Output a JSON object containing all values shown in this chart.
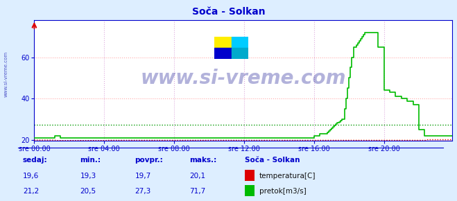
{
  "title": "Soča - Solkan",
  "bg_color": "#ddeeff",
  "plot_bg_color": "#ffffff",
  "text_color": "#0000cc",
  "grid_color_h": "#ffaaaa",
  "grid_color_v": "#ddaadd",
  "ylim": [
    19.5,
    78
  ],
  "xlim": [
    0,
    287
  ],
  "yticks": [
    20,
    40,
    60
  ],
  "xtick_labels": [
    "sre 00:00",
    "sre 04:00",
    "sre 08:00",
    "sre 12:00",
    "sre 16:00",
    "sre 20:00"
  ],
  "xtick_positions": [
    0,
    48,
    96,
    144,
    192,
    240
  ],
  "temp_color": "#dd0000",
  "flow_color": "#00bb00",
  "avg_flow_color": "#009900",
  "watermark_text": "www.si-vreme.com",
  "watermark_color": "#000088",
  "sidebar_text": "www.si-vreme.com",
  "sidebar_color": "#0000aa",
  "avg_flow_line": 27.3,
  "legend_title": "Soča - Solkan",
  "label_temp": "temperatura[C]",
  "label_flow": "pretok[m3/s]",
  "col_sedaj": "sedaj:",
  "col_min": "min.:",
  "col_povpr": "povpr.:",
  "col_maks": "maks.:",
  "temp_sedaj": "19,6",
  "temp_min": "19,3",
  "temp_povpr": "19,7",
  "temp_max": "20,1",
  "flow_sedaj": "21,2",
  "flow_min": "20,5",
  "flow_povpr": "27,3",
  "flow_max": "71,7"
}
